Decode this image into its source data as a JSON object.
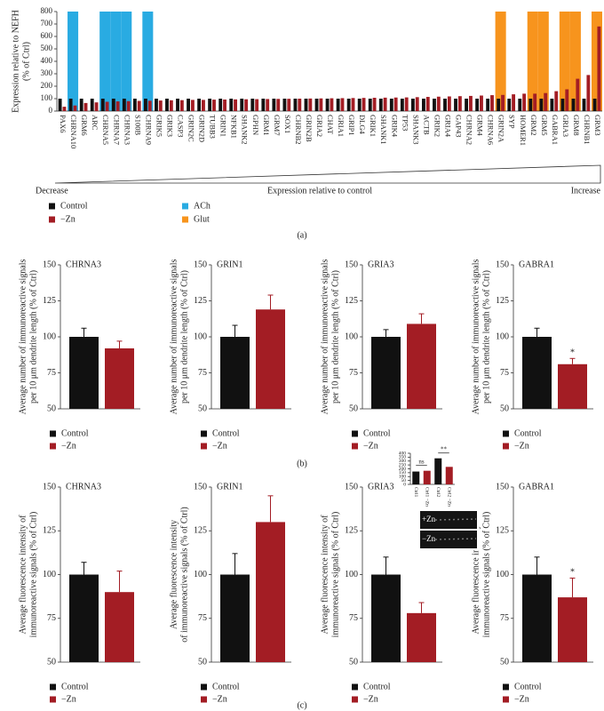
{
  "panel_labels": [
    "(a)",
    "(b)",
    "(c)"
  ],
  "chart_data": [
    {
      "type": "bar",
      "y_label": [
        "Expression relative to NEFH",
        "(% of Ctrl)"
      ],
      "categories": [
        "PAX6",
        "CHRNA10",
        "GRM6",
        "ARC",
        "CHRNA5",
        "CHRNA7",
        "CHRNA3",
        "S100B",
        "CHRNA9",
        "GRIK5",
        "GRIK3",
        "CASP3",
        "GRIN2C",
        "GRIN2D",
        "TUBB3",
        "GRIN1",
        "NFKB1",
        "SHANK2",
        "GPHN",
        "GRM1",
        "GRM7",
        "SOX1",
        "CHRNB2",
        "GRIN2B",
        "GRIA2",
        "CHAT",
        "GRIA1",
        "GRIP1",
        "DLG4",
        "GRIK1",
        "SHANK1",
        "GRIK4",
        "TP53",
        "SHANK3",
        "ACTB",
        "GRIK2",
        "GRIA4",
        "GAP43",
        "CHRNA2",
        "GRM4",
        "CHRNA6",
        "GRIN2A",
        "SYP",
        "HOMER1",
        "GRM2",
        "GRM5",
        "GABRA1",
        "GRIA3",
        "GRM8",
        "CHRNB1",
        "GRM3"
      ],
      "series": [
        {
          "name": "Control",
          "color": "#111111",
          "values": [
            100,
            100,
            100,
            100,
            100,
            100,
            100,
            100,
            100,
            100,
            100,
            100,
            100,
            100,
            100,
            100,
            100,
            100,
            100,
            100,
            100,
            100,
            100,
            100,
            100,
            100,
            100,
            100,
            100,
            100,
            100,
            100,
            100,
            100,
            100,
            100,
            100,
            100,
            100,
            100,
            100,
            100,
            100,
            100,
            100,
            100,
            100,
            100,
            100,
            100,
            100
          ]
        },
        {
          "name": "−Zn",
          "color": "#a31d24",
          "values": [
            35,
            45,
            65,
            70,
            75,
            78,
            80,
            82,
            83,
            85,
            87,
            88,
            90,
            90,
            92,
            93,
            94,
            95,
            96,
            97,
            98,
            99,
            100,
            101,
            102,
            103,
            104,
            105,
            106,
            107,
            108,
            109,
            110,
            112,
            114,
            116,
            118,
            120,
            122,
            125,
            128,
            130,
            135,
            140,
            140,
            145,
            160,
            175,
            260,
            290,
            680
          ]
        }
      ],
      "highlights": [
        {
          "name": "ACh",
          "color": "#29abe2",
          "categories": [
            "CHRNA10",
            "CHRNA5",
            "CHRNA7",
            "CHRNA3",
            "CHRNA9"
          ]
        },
        {
          "name": "Glut",
          "color": "#f7941d",
          "categories": [
            "GRIN2A",
            "GRM2",
            "GRM5",
            "GRIA3",
            "GRM8",
            "GRM3"
          ]
        }
      ],
      "ylim": [
        0,
        800
      ],
      "yticks": [
        0,
        100,
        200,
        300,
        400,
        500,
        600,
        700,
        800
      ],
      "axis_note": {
        "left": "Decrease",
        "center": "Expression relative to control",
        "right": "Increase"
      }
    },
    {
      "type": "pair",
      "title": "CHRNA3",
      "y_label": [
        "Average number of immunoreactive signals",
        "per 10 μm dendrite length (% of Ctrl)"
      ],
      "ylim": [
        50,
        150
      ],
      "yticks": [
        50,
        75,
        100,
        125,
        150
      ],
      "series": [
        {
          "name": "Control",
          "color": "#111111",
          "values": [
            100
          ],
          "errors": [
            6
          ]
        },
        {
          "name": "−Zn",
          "color": "#a31d24",
          "values": [
            92
          ],
          "errors": [
            5
          ]
        }
      ]
    },
    {
      "type": "pair",
      "title": "GRIN1",
      "y_label": [
        "Average number of immunoreactive signals",
        "per 10 μm dendrite length (% of Ctrl)"
      ],
      "ylim": [
        50,
        150
      ],
      "yticks": [
        50,
        75,
        100,
        125,
        150
      ],
      "series": [
        {
          "name": "Control",
          "color": "#111111",
          "values": [
            100
          ],
          "errors": [
            8
          ]
        },
        {
          "name": "−Zn",
          "color": "#a31d24",
          "values": [
            119
          ],
          "errors": [
            10
          ]
        }
      ]
    },
    {
      "type": "pair",
      "title": "GRIA3",
      "y_label": [
        "Average number of immunoreactive signals",
        "per 10 μm dendrite length (% of Ctrl)"
      ],
      "ylim": [
        50,
        150
      ],
      "yticks": [
        50,
        75,
        100,
        125,
        150
      ],
      "series": [
        {
          "name": "Control",
          "color": "#111111",
          "values": [
            100
          ],
          "errors": [
            5
          ]
        },
        {
          "name": "−Zn",
          "color": "#a31d24",
          "values": [
            109
          ],
          "errors": [
            7
          ]
        }
      ]
    },
    {
      "type": "pair",
      "title": "GABRA1",
      "y_label": [
        "Average number of immunoreactive signals",
        "per 10 μm dendrite length (% of Ctrl)"
      ],
      "ylim": [
        50,
        150
      ],
      "yticks": [
        50,
        75,
        100,
        125,
        150
      ],
      "annotation": "*",
      "series": [
        {
          "name": "Control",
          "color": "#111111",
          "values": [
            100
          ],
          "errors": [
            6
          ]
        },
        {
          "name": "−Zn",
          "color": "#a31d24",
          "values": [
            81
          ],
          "errors": [
            4
          ]
        }
      ]
    },
    {
      "type": "pair",
      "title": "CHRNA3",
      "y_label": [
        "Average fluorescence intensity of",
        "immunoreactive signals (% of Ctrl)"
      ],
      "ylim": [
        50,
        150
      ],
      "yticks": [
        50,
        75,
        100,
        125,
        150
      ],
      "series": [
        {
          "name": "Control",
          "color": "#111111",
          "values": [
            100
          ],
          "errors": [
            7
          ]
        },
        {
          "name": "−Zn",
          "color": "#a31d24",
          "values": [
            90
          ],
          "errors": [
            12
          ]
        }
      ]
    },
    {
      "type": "pair",
      "title": "GRIN1",
      "y_label": [
        "Average fluorescence intensity",
        "of immunoreactive signals (% of Ctrl)"
      ],
      "ylim": [
        50,
        150
      ],
      "yticks": [
        50,
        75,
        100,
        125,
        150
      ],
      "series": [
        {
          "name": "Control",
          "color": "#111111",
          "values": [
            100
          ],
          "errors": [
            12
          ]
        },
        {
          "name": "−Zn",
          "color": "#a31d24",
          "values": [
            130
          ],
          "errors": [
            15
          ]
        }
      ]
    },
    {
      "type": "pair",
      "title": "GRIA3",
      "y_label": [
        "Average fluorescence intensity of",
        "immunoreactive signals (% of Ctrl)"
      ],
      "ylim": [
        50,
        150
      ],
      "yticks": [
        50,
        75,
        100,
        125,
        150
      ],
      "series": [
        {
          "name": "Control",
          "color": "#111111",
          "values": [
            100
          ],
          "errors": [
            10
          ]
        },
        {
          "name": "−Zn",
          "color": "#a31d24",
          "values": [
            78
          ],
          "errors": [
            6
          ]
        }
      ]
    },
    {
      "type": "pair",
      "title": "GABRA1",
      "y_label": [
        "Average fluorescence intensity of",
        "immunoreactive signals (% of Ctrl)"
      ],
      "ylim": [
        50,
        150
      ],
      "yticks": [
        50,
        75,
        100,
        125,
        150
      ],
      "annotation": "*",
      "series": [
        {
          "name": "Control",
          "color": "#111111",
          "values": [
            100
          ],
          "errors": [
            10
          ]
        },
        {
          "name": "−Zn",
          "color": "#a31d24",
          "values": [
            87
          ],
          "errors": [
            11
          ]
        }
      ]
    },
    {
      "type": "inset",
      "categories": [
        "Ctrl1",
        "Ctrl1 −Zn",
        "Ctrl2",
        "Ctrl2 −Zn"
      ],
      "values": [
        165,
        175,
        335,
        225
      ],
      "colors": [
        "#111111",
        "#a31d24",
        "#111111",
        "#a31d24"
      ],
      "ylim": [
        0,
        400
      ],
      "yticks": [
        0,
        50,
        100,
        150,
        200,
        250,
        300,
        350,
        400
      ],
      "brackets": [
        {
          "label": "ns"
        },
        {
          "label": "**"
        }
      ],
      "image_labels": [
        "+Zn",
        "−Zn"
      ]
    }
  ]
}
